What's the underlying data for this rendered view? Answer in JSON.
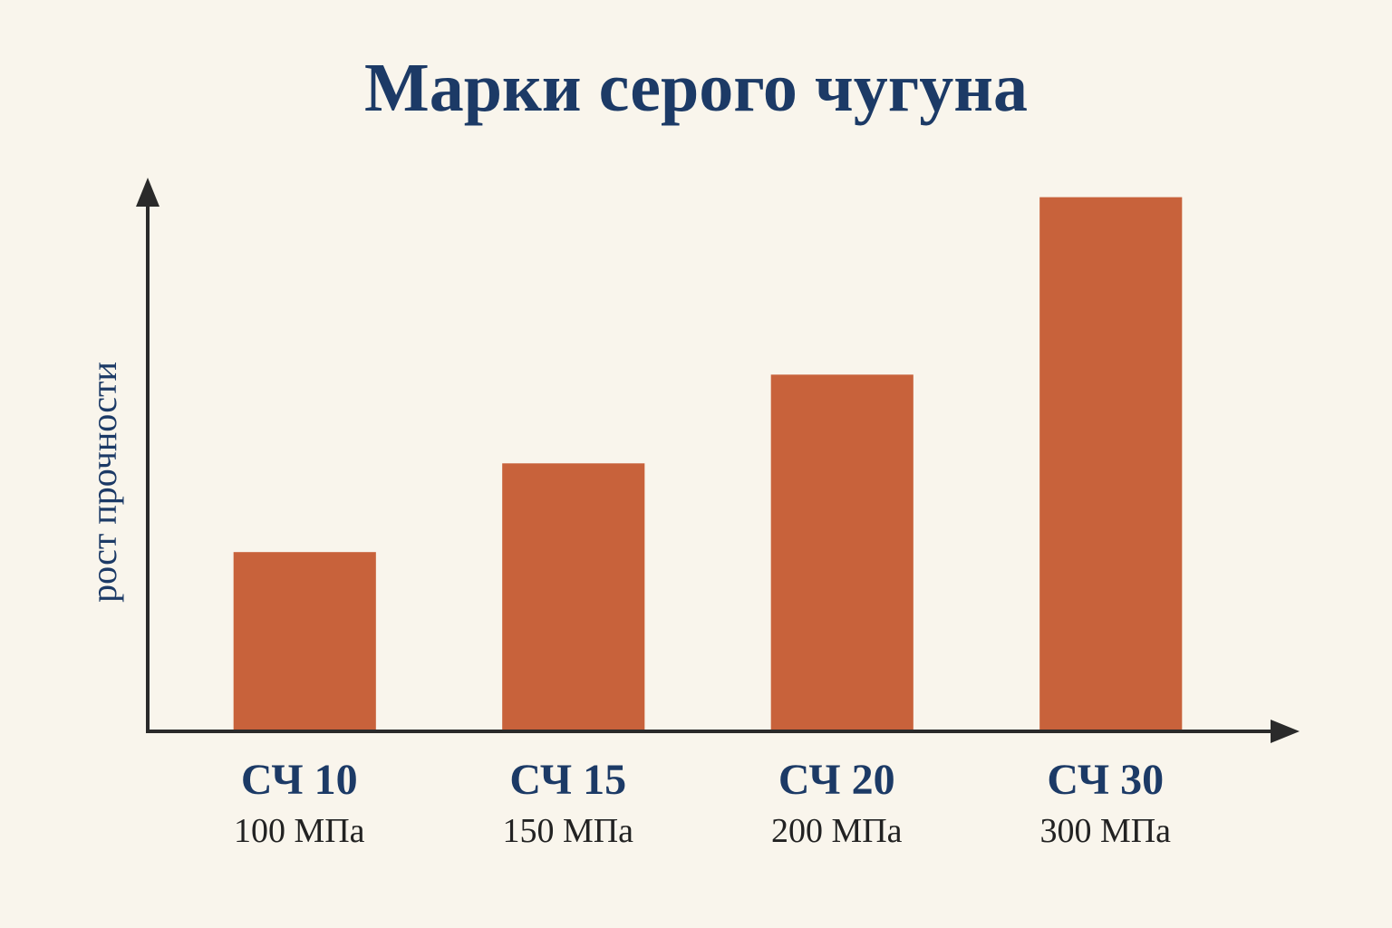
{
  "chart_data": {
    "type": "bar",
    "title": "Марки серого чугуна",
    "y_label": "рост прочности",
    "categories": [
      "СЧ 10",
      "СЧ 15",
      "СЧ 20",
      "СЧ 30"
    ],
    "values": [
      100,
      150,
      200,
      300
    ],
    "value_labels": [
      "100 МПа",
      "150 МПа",
      "200 МПа",
      "300 МПа"
    ],
    "color": "#c8623b",
    "ylim": [
      0,
      310
    ],
    "grid": false
  }
}
